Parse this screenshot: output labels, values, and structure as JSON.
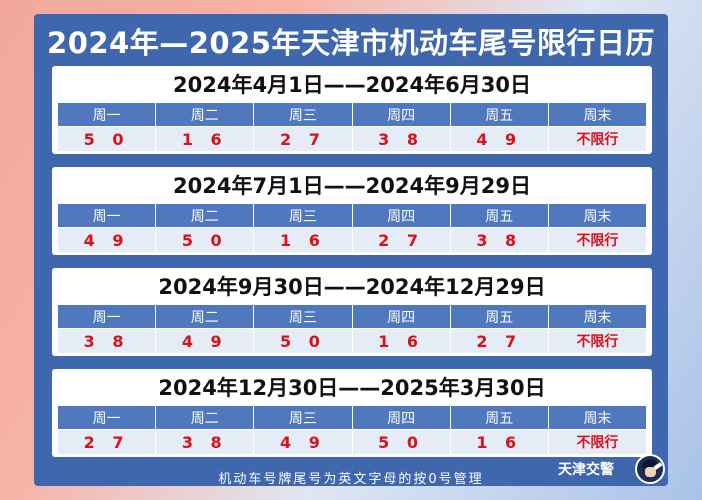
{
  "title": "2024年—2025年天津市机动车尾号限行日历",
  "weekdays": [
    "周一",
    "周二",
    "周三",
    "周四",
    "周五",
    "周末"
  ],
  "periods": [
    {
      "range": "2024年4月1日——2024年6月30日",
      "values": [
        "5 0",
        "1 6",
        "2 7",
        "3 8",
        "4 9",
        "不限行"
      ]
    },
    {
      "range": "2024年7月1日——2024年9月29日",
      "values": [
        "4 9",
        "5 0",
        "1 6",
        "2 7",
        "3 8",
        "不限行"
      ]
    },
    {
      "range": "2024年9月30日——2024年12月29日",
      "values": [
        "3 8",
        "4 9",
        "5 0",
        "1 6",
        "2 7",
        "不限行"
      ]
    },
    {
      "range": "2024年12月30日——2025年3月30日",
      "values": [
        "2 7",
        "3 8",
        "4 9",
        "5 0",
        "1 6",
        "不限行"
      ]
    }
  ],
  "footer_note": "机动车号牌尾号为英文字母的按0号管理",
  "logo_text": "天津交警",
  "logo_icon": "traffic-police-avatar-icon",
  "colors": {
    "panel": "#3f67ad",
    "header_cell": "#4f78be",
    "value_text": "#d8121b"
  }
}
